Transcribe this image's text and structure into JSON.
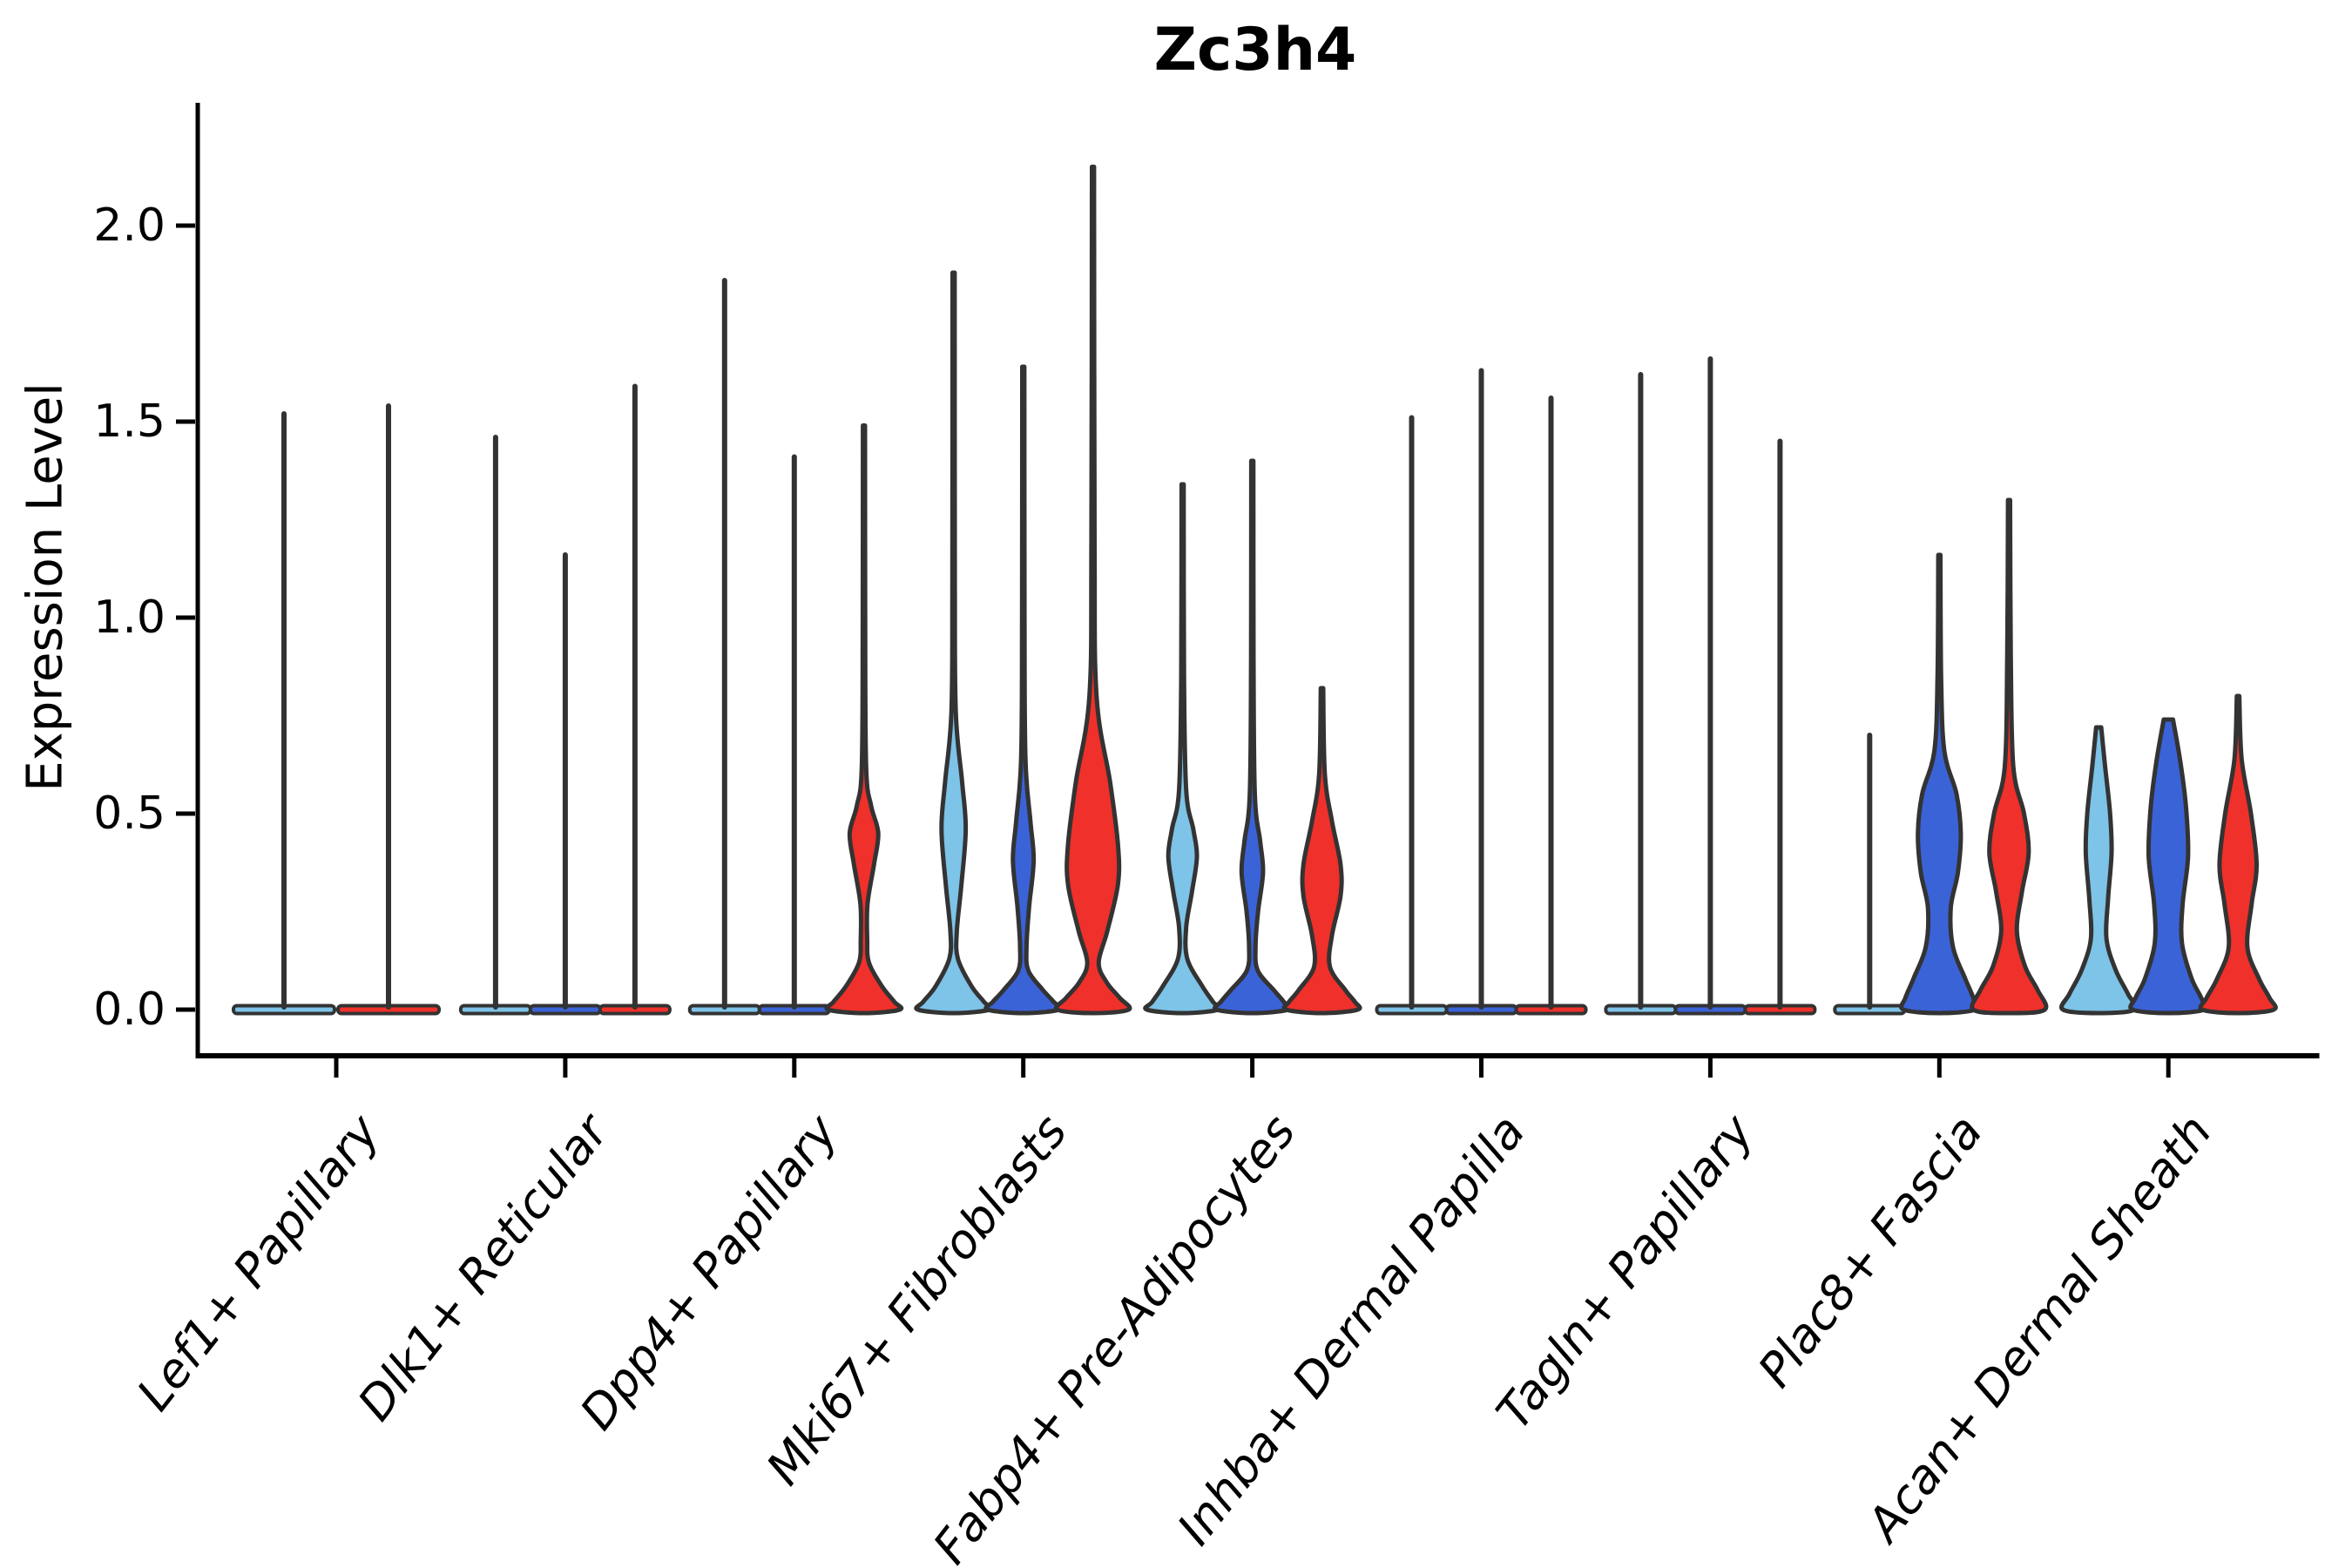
{
  "chart_data": {
    "type": "violin",
    "title": "Zc3h4",
    "xlabel": "",
    "ylabel": "Expression Level",
    "ylim": [
      -0.11,
      2.31
    ],
    "grid": false,
    "legend": "none",
    "y_ticks": [
      "0.0",
      "0.5",
      "1.0",
      "1.5",
      "2.0"
    ],
    "y_tick_values": [
      0.0,
      0.5,
      1.0,
      1.5,
      2.0
    ],
    "split_colors": [
      "#7EC3E8",
      "#3B63D8",
      "#F0302A"
    ],
    "outline_color": "#333333",
    "axis_color": "#000000",
    "categories": [
      {
        "label": "Lef1+ Papillary",
        "layout": "two",
        "violins": [
          {
            "split": 0,
            "kind": "spike",
            "max": 1.52
          },
          {
            "split": 2,
            "kind": "spike",
            "max": 1.54
          }
        ]
      },
      {
        "label": "Dlk1+ Reticular",
        "layout": "three",
        "violins": [
          {
            "split": 0,
            "kind": "spike",
            "max": 1.46
          },
          {
            "split": 1,
            "kind": "spike",
            "max": 1.16
          },
          {
            "split": 2,
            "kind": "spike",
            "max": 1.59
          }
        ]
      },
      {
        "label": "Dpp4+ Papillary",
        "layout": "three",
        "violins": [
          {
            "split": 0,
            "kind": "spike",
            "max": 1.86
          },
          {
            "split": 1,
            "kind": "spike",
            "max": 1.41
          },
          {
            "split": 2,
            "kind": "violin",
            "max": 1.49,
            "profile": [
              [
                1.49,
                0.03
              ],
              [
                1.0,
                0.035
              ],
              [
                0.62,
                0.06
              ],
              [
                0.52,
                0.2
              ],
              [
                0.45,
                0.4
              ],
              [
                0.37,
                0.28
              ],
              [
                0.27,
                0.1
              ],
              [
                0.18,
                0.09
              ],
              [
                0.12,
                0.14
              ],
              [
                0.06,
                0.5
              ],
              [
                0.02,
                0.85
              ],
              [
                0,
                1
              ]
            ]
          }
        ]
      },
      {
        "label": "Mki67+ Fibroblasts",
        "layout": "three",
        "violins": [
          {
            "split": 0,
            "kind": "violin",
            "max": 1.88,
            "profile": [
              [
                1.88,
                0.03
              ],
              [
                1.1,
                0.035
              ],
              [
                0.76,
                0.06
              ],
              [
                0.58,
                0.24
              ],
              [
                0.46,
                0.34
              ],
              [
                0.32,
                0.22
              ],
              [
                0.2,
                0.09
              ],
              [
                0.13,
                0.12
              ],
              [
                0.06,
                0.5
              ],
              [
                0.02,
                0.85
              ],
              [
                0,
                1
              ]
            ]
          },
          {
            "split": 1,
            "kind": "violin",
            "max": 1.64,
            "profile": [
              [
                1.64,
                0.03
              ],
              [
                1.0,
                0.035
              ],
              [
                0.64,
                0.06
              ],
              [
                0.48,
                0.2
              ],
              [
                0.38,
                0.29
              ],
              [
                0.26,
                0.16
              ],
              [
                0.16,
                0.09
              ],
              [
                0.1,
                0.14
              ],
              [
                0.05,
                0.55
              ],
              [
                0.02,
                0.85
              ],
              [
                0,
                1
              ]
            ]
          },
          {
            "split": 2,
            "kind": "violin",
            "max": 2.15,
            "profile": [
              [
                2.15,
                0.03
              ],
              [
                1.2,
                0.045
              ],
              [
                0.8,
                0.1
              ],
              [
                0.58,
                0.48
              ],
              [
                0.42,
                0.7
              ],
              [
                0.32,
                0.7
              ],
              [
                0.2,
                0.4
              ],
              [
                0.12,
                0.16
              ],
              [
                0.07,
                0.38
              ],
              [
                0.03,
                0.75
              ],
              [
                0,
                1
              ]
            ]
          }
        ]
      },
      {
        "label": "Fabp4+ Pre-Adipocytes",
        "layout": "three",
        "violins": [
          {
            "split": 0,
            "kind": "violin",
            "max": 1.34,
            "profile": [
              [
                1.34,
                0.03
              ],
              [
                0.85,
                0.04
              ],
              [
                0.56,
                0.1
              ],
              [
                0.46,
                0.3
              ],
              [
                0.39,
                0.4
              ],
              [
                0.3,
                0.26
              ],
              [
                0.21,
                0.1
              ],
              [
                0.13,
                0.13
              ],
              [
                0.06,
                0.55
              ],
              [
                0.02,
                0.85
              ],
              [
                0,
                1
              ]
            ]
          },
          {
            "split": 1,
            "kind": "violin",
            "max": 1.4,
            "profile": [
              [
                1.4,
                0.03
              ],
              [
                0.9,
                0.035
              ],
              [
                0.55,
                0.07
              ],
              [
                0.43,
                0.22
              ],
              [
                0.35,
                0.3
              ],
              [
                0.25,
                0.16
              ],
              [
                0.16,
                0.09
              ],
              [
                0.1,
                0.15
              ],
              [
                0.05,
                0.6
              ],
              [
                0.02,
                0.88
              ],
              [
                0,
                1
              ]
            ]
          },
          {
            "split": 2,
            "kind": "violin",
            "max": 0.82,
            "profile": [
              [
                0.82,
                0.035
              ],
              [
                0.6,
                0.08
              ],
              [
                0.48,
                0.28
              ],
              [
                0.37,
                0.52
              ],
              [
                0.29,
                0.52
              ],
              [
                0.19,
                0.28
              ],
              [
                0.11,
                0.22
              ],
              [
                0.05,
                0.65
              ],
              [
                0.02,
                0.92
              ],
              [
                0,
                1
              ]
            ]
          }
        ]
      },
      {
        "label": "Inhba+ Dermal Papilla",
        "layout": "three",
        "violins": [
          {
            "split": 0,
            "kind": "spike",
            "max": 1.51
          },
          {
            "split": 1,
            "kind": "spike",
            "max": 1.63
          },
          {
            "split": 2,
            "kind": "spike",
            "max": 1.56
          }
        ]
      },
      {
        "label": "Tagln+ Papillary",
        "layout": "three",
        "violins": [
          {
            "split": 0,
            "kind": "spike",
            "max": 1.62
          },
          {
            "split": 1,
            "kind": "spike",
            "max": 1.66
          },
          {
            "split": 2,
            "kind": "spike",
            "max": 1.45
          }
        ]
      },
      {
        "label": "Plac8+ Fascia",
        "layout": "three",
        "violins": [
          {
            "split": 0,
            "kind": "spike",
            "max": 0.7
          },
          {
            "split": 1,
            "kind": "violin",
            "max": 1.16,
            "profile": [
              [
                1.16,
                0.03
              ],
              [
                0.85,
                0.05
              ],
              [
                0.66,
                0.14
              ],
              [
                0.55,
                0.48
              ],
              [
                0.45,
                0.6
              ],
              [
                0.35,
                0.52
              ],
              [
                0.26,
                0.32
              ],
              [
                0.16,
                0.38
              ],
              [
                0.08,
                0.72
              ],
              [
                0.03,
                0.95
              ],
              [
                0,
                1
              ]
            ]
          },
          {
            "split": 2,
            "kind": "violin",
            "max": 1.3,
            "profile": [
              [
                1.3,
                0.03
              ],
              [
                0.9,
                0.05
              ],
              [
                0.62,
                0.12
              ],
              [
                0.5,
                0.42
              ],
              [
                0.4,
                0.55
              ],
              [
                0.3,
                0.36
              ],
              [
                0.2,
                0.22
              ],
              [
                0.11,
                0.45
              ],
              [
                0.05,
                0.8
              ],
              [
                0,
                1
              ]
            ]
          }
        ]
      },
      {
        "label": "Acan+ Dermal Sheath",
        "layout": "three",
        "violins": [
          {
            "split": 0,
            "kind": "violin",
            "max": 0.72,
            "profile": [
              [
                0.72,
                0.07
              ],
              [
                0.62,
                0.18
              ],
              [
                0.5,
                0.32
              ],
              [
                0.4,
                0.36
              ],
              [
                0.28,
                0.26
              ],
              [
                0.18,
                0.22
              ],
              [
                0.1,
                0.48
              ],
              [
                0.04,
                0.82
              ],
              [
                0,
                1
              ]
            ]
          },
          {
            "split": 1,
            "kind": "violin",
            "max": 0.74,
            "profile": [
              [
                0.74,
                0.13
              ],
              [
                0.63,
                0.34
              ],
              [
                0.51,
                0.5
              ],
              [
                0.39,
                0.55
              ],
              [
                0.27,
                0.4
              ],
              [
                0.17,
                0.38
              ],
              [
                0.08,
                0.65
              ],
              [
                0.03,
                0.92
              ],
              [
                0,
                1
              ]
            ]
          },
          {
            "split": 2,
            "kind": "violin",
            "max": 0.8,
            "profile": [
              [
                0.8,
                0.035
              ],
              [
                0.64,
                0.1
              ],
              [
                0.5,
                0.36
              ],
              [
                0.37,
                0.52
              ],
              [
                0.27,
                0.38
              ],
              [
                0.16,
                0.26
              ],
              [
                0.08,
                0.58
              ],
              [
                0.03,
                0.88
              ],
              [
                0,
                1
              ]
            ]
          }
        ]
      }
    ]
  }
}
